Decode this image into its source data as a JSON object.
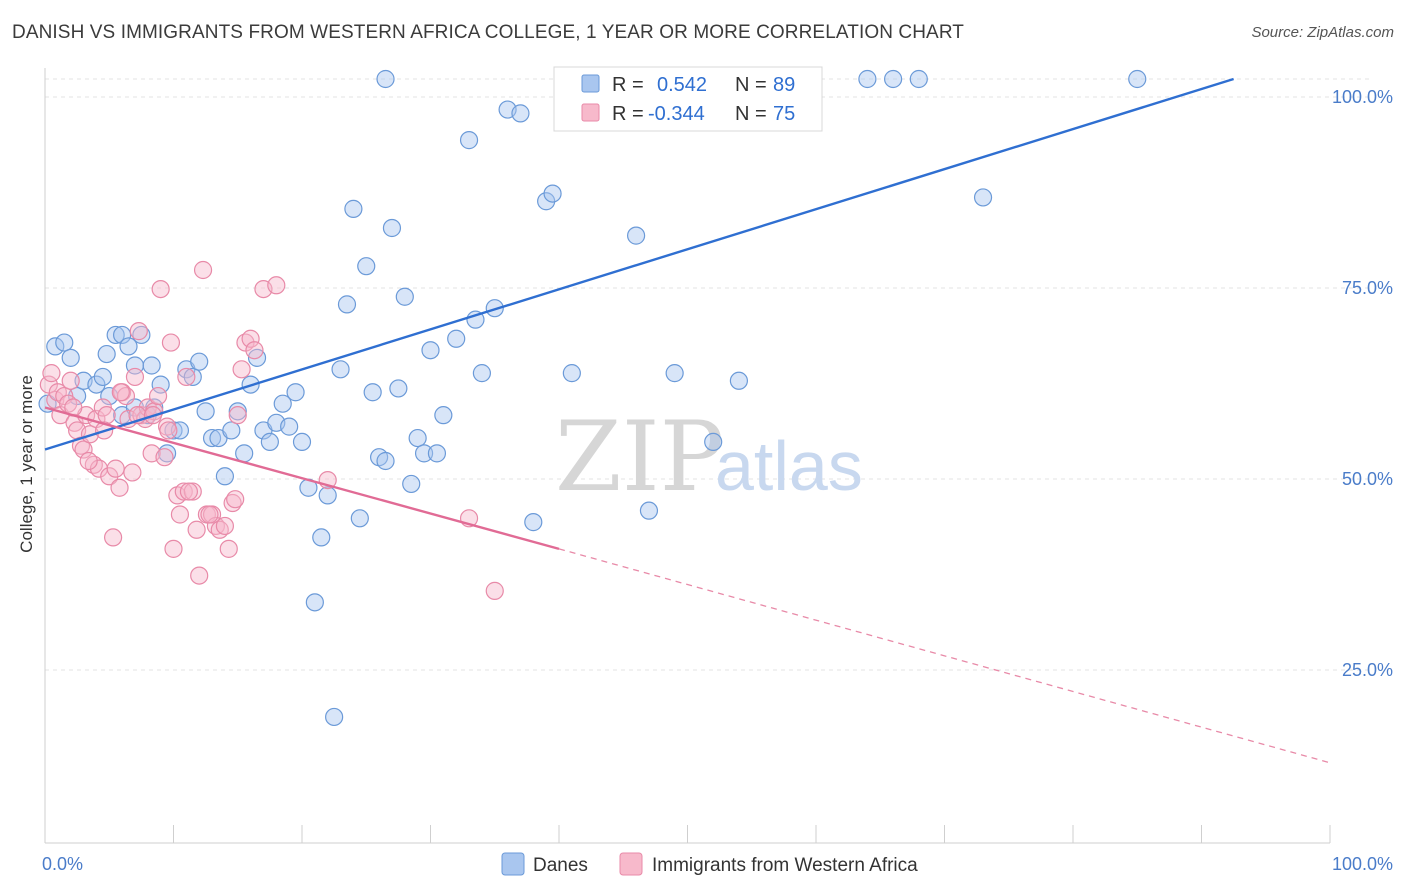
{
  "title": "DANISH VS IMMIGRANTS FROM WESTERN AFRICA COLLEGE, 1 YEAR OR MORE CORRELATION CHART",
  "source": "Source: ZipAtlas.com",
  "watermark": {
    "zip": "ZIP",
    "atlas": "atlas"
  },
  "legend_box": {
    "rows": [
      {
        "r_label": "R =",
        "r_value": "0.542",
        "n_label": "N =",
        "n_value": "89",
        "color": "#a9c6ef",
        "stroke": "#6b9ad8"
      },
      {
        "r_label": "R =",
        "r_value": "-0.344",
        "n_label": "N =",
        "n_value": "75",
        "color": "#f7b9cb",
        "stroke": "#e88aa8"
      }
    ]
  },
  "bottom_legend": [
    {
      "label": "Danes",
      "color": "#a9c6ef",
      "stroke": "#6b9ad8"
    },
    {
      "label": "Immigrants from Western Africa",
      "color": "#f7b9cb",
      "stroke": "#e88aa8"
    }
  ],
  "chart_data": {
    "type": "scatter",
    "title": "DANISH VS IMMIGRANTS FROM WESTERN AFRICA COLLEGE, 1 YEAR OR MORE CORRELATION CHART",
    "xlabel": "",
    "ylabel": "College, 1 year or more",
    "xlim": [
      0,
      100
    ],
    "ylim": [
      0,
      100
    ],
    "x_ticks": [
      {
        "value": 0,
        "label": "0.0%"
      },
      {
        "value": 100,
        "label": "100.0%"
      }
    ],
    "y_ticks": [
      {
        "value": 25,
        "label": "25.0%"
      },
      {
        "value": 50,
        "label": "50.0%"
      },
      {
        "value": 75,
        "label": "75.0%"
      },
      {
        "value": 100,
        "label": "100.0%"
      }
    ],
    "grid": true,
    "legend_position": "top-center",
    "series": [
      {
        "name": "Danes",
        "color": "#6b9ad8",
        "fill": "#a9c6ef",
        "trend": {
          "x0": 0,
          "y0": 51.5,
          "x1": 92.5,
          "y1": 100
        },
        "points": [
          [
            0.2,
            57.5
          ],
          [
            0.8,
            65
          ],
          [
            1.5,
            65.5
          ],
          [
            2,
            63.5
          ],
          [
            2.5,
            58.5
          ],
          [
            3,
            60.5
          ],
          [
            4,
            60
          ],
          [
            4.5,
            61
          ],
          [
            4.8,
            64
          ],
          [
            5,
            58.5
          ],
          [
            5.5,
            66.5
          ],
          [
            6,
            66.5
          ],
          [
            6,
            56
          ],
          [
            6.5,
            65
          ],
          [
            7,
            62.5
          ],
          [
            7,
            57
          ],
          [
            7.5,
            66.5
          ],
          [
            8,
            56
          ],
          [
            8.3,
            62.5
          ],
          [
            8.5,
            57
          ],
          [
            9,
            60
          ],
          [
            9.5,
            51
          ],
          [
            10,
            54
          ],
          [
            10.5,
            54
          ],
          [
            11,
            62
          ],
          [
            11.5,
            61
          ],
          [
            12,
            63
          ],
          [
            12.5,
            56.5
          ],
          [
            13,
            53
          ],
          [
            13.5,
            53
          ],
          [
            14,
            48
          ],
          [
            14.5,
            54
          ],
          [
            15,
            56.5
          ],
          [
            15.5,
            51
          ],
          [
            16,
            60
          ],
          [
            16.5,
            63.5
          ],
          [
            17,
            54
          ],
          [
            17.5,
            52.5
          ],
          [
            18,
            55
          ],
          [
            18.5,
            57.5
          ],
          [
            19,
            54.5
          ],
          [
            19.5,
            59
          ],
          [
            20,
            52.5
          ],
          [
            20.5,
            46.5
          ],
          [
            21,
            31.5
          ],
          [
            21.5,
            40
          ],
          [
            22,
            45.5
          ],
          [
            22.5,
            16.5
          ],
          [
            23,
            62
          ],
          [
            23.5,
            70.5
          ],
          [
            24,
            83
          ],
          [
            24.5,
            42.5
          ],
          [
            25,
            75.5
          ],
          [
            25.5,
            59
          ],
          [
            26,
            50.5
          ],
          [
            26.5,
            50
          ],
          [
            27,
            80.5
          ],
          [
            27.5,
            59.5
          ],
          [
            28,
            71.5
          ],
          [
            28.5,
            47
          ],
          [
            29,
            53
          ],
          [
            29.5,
            51
          ],
          [
            30,
            64.5
          ],
          [
            30.5,
            51
          ],
          [
            31,
            56
          ],
          [
            32,
            66
          ],
          [
            33,
            92
          ],
          [
            33.5,
            68.5
          ],
          [
            34,
            61.5
          ],
          [
            35,
            70
          ],
          [
            36,
            96
          ],
          [
            37,
            95.5
          ],
          [
            38,
            42
          ],
          [
            39,
            84
          ],
          [
            39.5,
            85
          ],
          [
            41,
            61.5
          ],
          [
            43,
            100
          ],
          [
            44,
            100
          ],
          [
            46,
            79.5
          ],
          [
            47,
            43.5
          ],
          [
            49,
            61.5
          ],
          [
            52,
            52.5
          ],
          [
            54,
            60.5
          ],
          [
            64,
            100
          ],
          [
            66,
            100
          ],
          [
            68,
            100
          ],
          [
            73,
            84.5
          ],
          [
            85,
            100
          ],
          [
            26.5,
            100
          ]
        ]
      },
      {
        "name": "Immigrants from Western Africa",
        "color": "#e88aa8",
        "fill": "#f7b9cb",
        "trend": {
          "x0": 0,
          "y0": 57,
          "x1": 40,
          "y1": 38.5
        },
        "trend_dashed": {
          "x0": 40,
          "y0": 38.5,
          "x1": 100,
          "y1": 10.5
        },
        "points": [
          [
            0.3,
            60
          ],
          [
            0.5,
            61.5
          ],
          [
            0.8,
            58
          ],
          [
            1,
            59
          ],
          [
            1.2,
            56
          ],
          [
            1.5,
            58.5
          ],
          [
            1.8,
            57.5
          ],
          [
            2,
            60.5
          ],
          [
            2.3,
            55
          ],
          [
            2.5,
            54
          ],
          [
            2.8,
            52
          ],
          [
            3,
            51.5
          ],
          [
            3.2,
            56
          ],
          [
            3.5,
            53.5
          ],
          [
            3.8,
            49.5
          ],
          [
            4,
            55.5
          ],
          [
            4.2,
            49
          ],
          [
            4.5,
            57
          ],
          [
            4.8,
            56
          ],
          [
            5,
            48
          ],
          [
            5.3,
            40
          ],
          [
            5.5,
            49
          ],
          [
            5.8,
            46.5
          ],
          [
            6,
            59
          ],
          [
            6.3,
            58.5
          ],
          [
            6.5,
            55.5
          ],
          [
            6.8,
            48.5
          ],
          [
            7,
            61
          ],
          [
            7.3,
            67
          ],
          [
            7.5,
            56
          ],
          [
            7.8,
            55.5
          ],
          [
            8,
            57
          ],
          [
            8.3,
            51
          ],
          [
            8.5,
            56.5
          ],
          [
            8.8,
            58.5
          ],
          [
            9,
            72.5
          ],
          [
            9.3,
            50.5
          ],
          [
            9.5,
            54.5
          ],
          [
            9.8,
            65.5
          ],
          [
            10,
            38.5
          ],
          [
            10.3,
            45.5
          ],
          [
            10.5,
            43
          ],
          [
            10.8,
            46
          ],
          [
            11,
            61
          ],
          [
            11.5,
            46
          ],
          [
            11.8,
            41
          ],
          [
            12,
            35
          ],
          [
            12.3,
            75
          ],
          [
            12.6,
            43
          ],
          [
            13,
            43
          ],
          [
            13.3,
            41.5
          ],
          [
            13.6,
            41
          ],
          [
            14,
            41.5
          ],
          [
            14.3,
            38.5
          ],
          [
            14.6,
            44.5
          ],
          [
            15,
            56
          ],
          [
            15.3,
            62
          ],
          [
            15.6,
            65.5
          ],
          [
            16,
            66
          ],
          [
            16.3,
            64.5
          ],
          [
            17,
            72.5
          ],
          [
            18,
            73
          ],
          [
            22,
            47.5
          ],
          [
            33,
            42.5
          ],
          [
            35,
            33
          ],
          [
            2.2,
            57
          ],
          [
            3.4,
            50
          ],
          [
            4.6,
            54
          ],
          [
            5.9,
            59
          ],
          [
            7.2,
            56
          ],
          [
            8.4,
            56
          ],
          [
            9.6,
            54
          ],
          [
            11.2,
            46
          ],
          [
            12.8,
            43
          ],
          [
            14.8,
            45
          ]
        ]
      }
    ]
  }
}
